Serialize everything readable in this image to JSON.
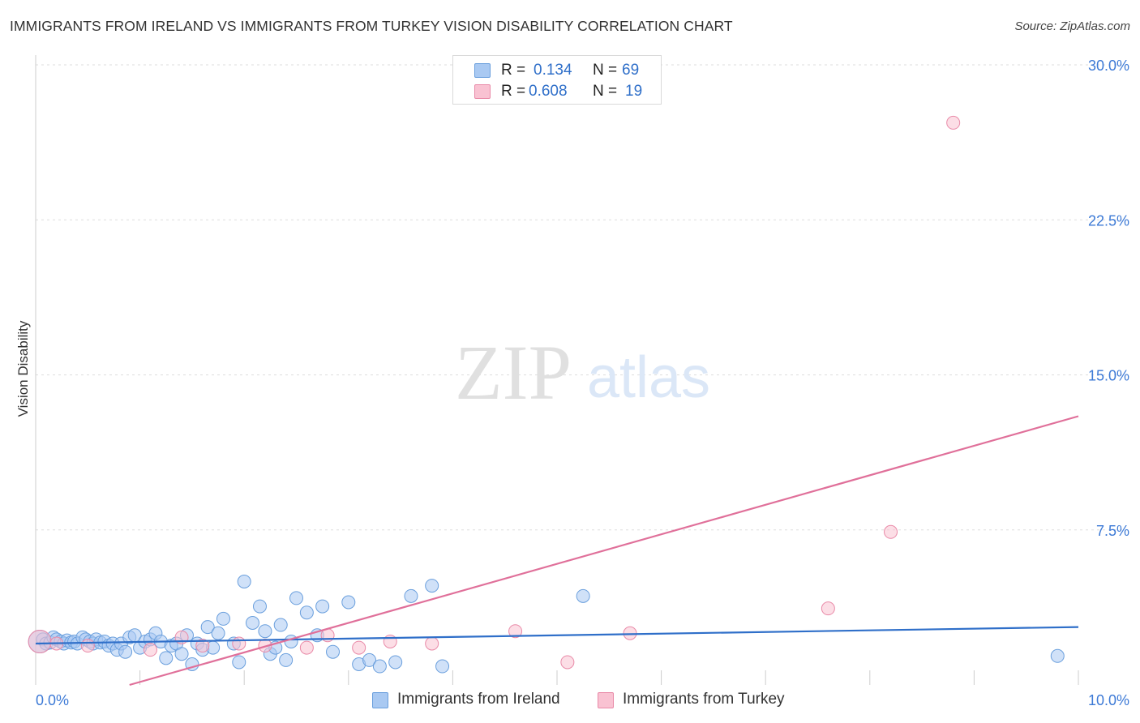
{
  "title": "IMMIGRANTS FROM IRELAND VS IMMIGRANTS FROM TURKEY VISION DISABILITY CORRELATION CHART",
  "source": "Source: ZipAtlas.com",
  "watermark": {
    "zip": "ZIP",
    "atlas": "atlas"
  },
  "legend_top": [
    {
      "r_label": "R =",
      "r_value": "0.134",
      "n_label": "N =",
      "n_value": "69",
      "color": "#a9c9f2",
      "border": "#6a9fdd"
    },
    {
      "r_label": "R =",
      "r_value": "0.608",
      "n_label": "N =",
      "n_value": "19",
      "color": "#f9c2d2",
      "border": "#e98aa8"
    }
  ],
  "legend_bottom": [
    {
      "label": "Immigrants from Ireland",
      "color": "#a9c9f2",
      "border": "#6a9fdd"
    },
    {
      "label": "Immigrants from Turkey",
      "color": "#f9c2d2",
      "border": "#e98aa8"
    }
  ],
  "chart_data": {
    "type": "scatter",
    "title": "IMMIGRANTS FROM IRELAND VS IMMIGRANTS FROM TURKEY VISION DISABILITY CORRELATION CHART",
    "xlabel": "",
    "ylabel": "Vision Disability",
    "xlim": [
      0,
      10
    ],
    "ylim": [
      0,
      30
    ],
    "x_tick_labels": [
      {
        "value": 0,
        "label": "0.0%"
      },
      {
        "value": 10,
        "label": "10.0%"
      }
    ],
    "y_tick_labels": [
      {
        "value": 7.5,
        "label": "7.5%"
      },
      {
        "value": 15,
        "label": "15.0%"
      },
      {
        "value": 22.5,
        "label": "22.5%"
      },
      {
        "value": 30,
        "label": "30.0%"
      }
    ],
    "series": [
      {
        "name": "Immigrants from Ireland",
        "color": "#6a9fdd",
        "fill": "rgba(169,201,242,0.55)",
        "trend_color": "#2f6fc9",
        "trend": {
          "x0": 0,
          "y0": 2.0,
          "x1": 10,
          "y1": 2.8
        },
        "points": [
          [
            0.04,
            2.1
          ],
          [
            0.07,
            2.2
          ],
          [
            0.1,
            2.0
          ],
          [
            0.14,
            2.05
          ],
          [
            0.17,
            2.3
          ],
          [
            0.2,
            2.2
          ],
          [
            0.24,
            2.1
          ],
          [
            0.27,
            2.0
          ],
          [
            0.3,
            2.15
          ],
          [
            0.34,
            2.05
          ],
          [
            0.37,
            2.1
          ],
          [
            0.4,
            2.0
          ],
          [
            0.45,
            2.3
          ],
          [
            0.48,
            2.2
          ],
          [
            0.52,
            2.1
          ],
          [
            0.55,
            2.0
          ],
          [
            0.58,
            2.2
          ],
          [
            0.62,
            2.05
          ],
          [
            0.66,
            2.1
          ],
          [
            0.7,
            1.9
          ],
          [
            0.74,
            2.0
          ],
          [
            0.78,
            1.7
          ],
          [
            0.82,
            2.0
          ],
          [
            0.86,
            1.6
          ],
          [
            0.9,
            2.3
          ],
          [
            0.95,
            2.4
          ],
          [
            1.0,
            1.8
          ],
          [
            1.05,
            2.1
          ],
          [
            1.1,
            2.2
          ],
          [
            1.15,
            2.5
          ],
          [
            1.2,
            2.1
          ],
          [
            1.25,
            1.3
          ],
          [
            1.3,
            1.9
          ],
          [
            1.35,
            2.0
          ],
          [
            1.4,
            1.5
          ],
          [
            1.45,
            2.4
          ],
          [
            1.5,
            1.0
          ],
          [
            1.55,
            2.0
          ],
          [
            1.6,
            1.7
          ],
          [
            1.65,
            2.8
          ],
          [
            1.7,
            1.8
          ],
          [
            1.75,
            2.5
          ],
          [
            1.8,
            3.2
          ],
          [
            1.9,
            2.0
          ],
          [
            1.95,
            1.1
          ],
          [
            2.0,
            5.0
          ],
          [
            2.08,
            3.0
          ],
          [
            2.15,
            3.8
          ],
          [
            2.2,
            2.6
          ],
          [
            2.25,
            1.5
          ],
          [
            2.3,
            1.8
          ],
          [
            2.35,
            2.9
          ],
          [
            2.4,
            1.2
          ],
          [
            2.45,
            2.1
          ],
          [
            2.5,
            4.2
          ],
          [
            2.6,
            3.5
          ],
          [
            2.7,
            2.4
          ],
          [
            2.75,
            3.8
          ],
          [
            2.85,
            1.6
          ],
          [
            3.0,
            4.0
          ],
          [
            3.1,
            1.0
          ],
          [
            3.2,
            1.2
          ],
          [
            3.3,
            0.9
          ],
          [
            3.45,
            1.1
          ],
          [
            3.6,
            4.3
          ],
          [
            3.8,
            4.8
          ],
          [
            3.9,
            0.9
          ],
          [
            5.25,
            4.3
          ],
          [
            9.8,
            1.4
          ]
        ]
      },
      {
        "name": "Immigrants from Turkey",
        "color": "#e98aa8",
        "fill": "rgba(249,194,210,0.55)",
        "trend_color": "#e0709a",
        "trend": {
          "x0": 0.9,
          "y0": 0.0,
          "x1": 10,
          "y1": 13.0
        },
        "points": [
          [
            0.04,
            2.1
          ],
          [
            0.2,
            2.0
          ],
          [
            0.5,
            1.9
          ],
          [
            1.1,
            1.7
          ],
          [
            1.4,
            2.3
          ],
          [
            1.6,
            1.9
          ],
          [
            1.95,
            2.0
          ],
          [
            2.2,
            1.9
          ],
          [
            2.6,
            1.8
          ],
          [
            2.8,
            2.4
          ],
          [
            3.1,
            1.8
          ],
          [
            3.4,
            2.1
          ],
          [
            3.8,
            2.0
          ],
          [
            4.6,
            2.6
          ],
          [
            5.1,
            1.1
          ],
          [
            5.7,
            2.5
          ],
          [
            7.6,
            3.7
          ],
          [
            8.2,
            7.4
          ],
          [
            8.8,
            27.2
          ]
        ]
      }
    ]
  }
}
